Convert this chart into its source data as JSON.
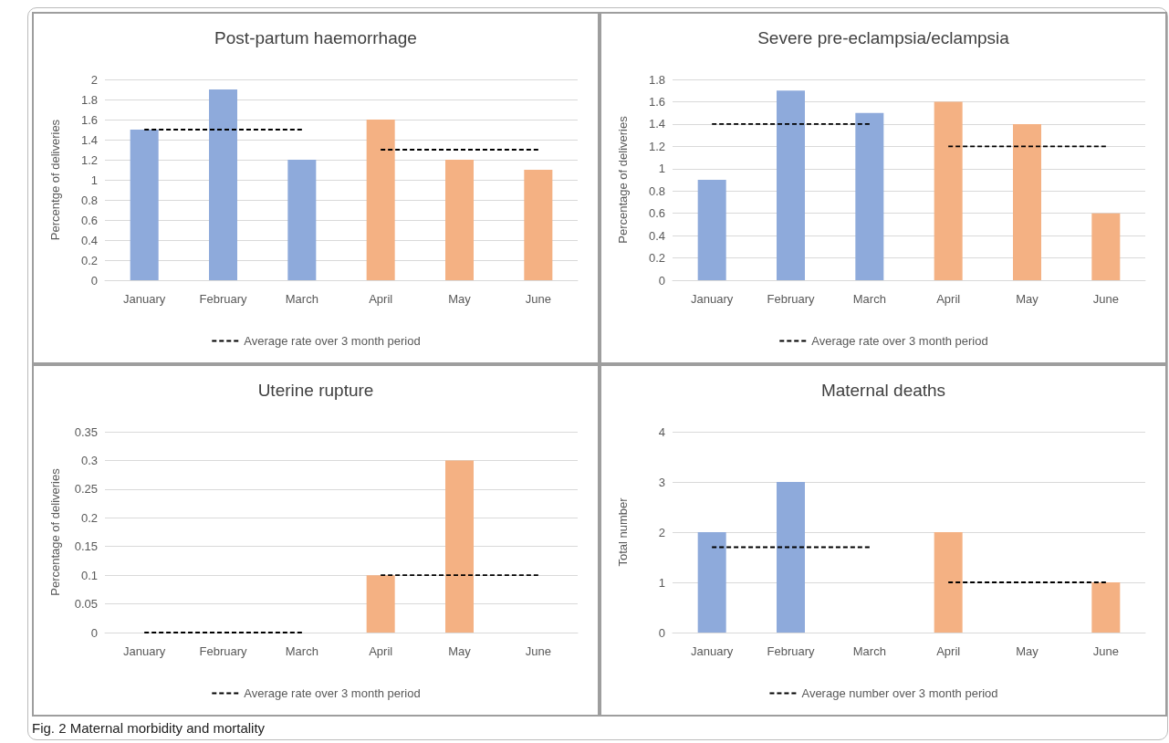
{
  "chart_data": [
    {
      "type": "bar",
      "title": "Post-partum haemorrhage",
      "ylabel": "Percentge of deliveries",
      "categories": [
        "January",
        "February",
        "March",
        "April",
        "May",
        "June"
      ],
      "ylim": [
        0,
        2
      ],
      "yticks": [
        0,
        0.2,
        0.4,
        0.6,
        0.8,
        1,
        1.2,
        1.4,
        1.6,
        1.8,
        2
      ],
      "grid": "y",
      "legend": "bottom",
      "line_style": "dashed",
      "marker": "none",
      "series": [
        {
          "colors": [
            "#8eaadb",
            "#8eaadb",
            "#8eaadb",
            "#f4b183",
            "#f4b183",
            "#f4b183"
          ],
          "values": [
            1.5,
            1.9,
            1.2,
            1.6,
            1.2,
            1.1
          ]
        },
        {
          "type": "line",
          "name": "Average rate over 3 month period",
          "color": "#000000",
          "values": [
            1.5,
            1.5,
            1.5,
            null,
            null,
            null
          ]
        },
        {
          "type": "line",
          "color": "#000000",
          "values": [
            null,
            null,
            null,
            1.3,
            1.3,
            1.3
          ]
        }
      ]
    },
    {
      "type": "bar",
      "title": "Severe pre-eclampsia/eclampsia",
      "ylabel": "Percentage of deliveries",
      "categories": [
        "January",
        "February",
        "March",
        "April",
        "May",
        "June"
      ],
      "ylim": [
        0,
        1.8
      ],
      "yticks": [
        0,
        0.2,
        0.4,
        0.6,
        0.8,
        1,
        1.2,
        1.4,
        1.6,
        1.8
      ],
      "grid": "y",
      "legend": "bottom",
      "line_style": "dashed",
      "marker": "none",
      "series": [
        {
          "colors": [
            "#8eaadb",
            "#8eaadb",
            "#8eaadb",
            "#f4b183",
            "#f4b183",
            "#f4b183"
          ],
          "values": [
            0.9,
            1.7,
            1.5,
            1.6,
            1.4,
            0.6
          ]
        },
        {
          "type": "line",
          "name": "Average rate over 3 month period",
          "color": "#000000",
          "values": [
            1.4,
            1.4,
            1.4,
            null,
            null,
            null
          ]
        },
        {
          "type": "line",
          "color": "#000000",
          "values": [
            null,
            null,
            null,
            1.2,
            1.2,
            1.2
          ]
        }
      ]
    },
    {
      "type": "bar",
      "title": "Uterine rupture",
      "ylabel": "Percentage of deliveries",
      "categories": [
        "January",
        "February",
        "March",
        "April",
        "May",
        "June"
      ],
      "ylim": [
        0,
        0.35
      ],
      "yticks": [
        0,
        0.05,
        0.1,
        0.15,
        0.2,
        0.25,
        0.3,
        0.35
      ],
      "grid": "y",
      "legend": "bottom",
      "line_style": "dashed",
      "marker": "none",
      "series": [
        {
          "colors": [
            "#8eaadb",
            "#8eaadb",
            "#8eaadb",
            "#f4b183",
            "#f4b183",
            "#f4b183"
          ],
          "values": [
            0,
            0,
            0,
            0.1,
            0.3,
            0
          ]
        },
        {
          "type": "line",
          "name": "Average rate over 3 month period",
          "color": "#000000",
          "values": [
            0,
            0,
            0,
            null,
            null,
            null
          ]
        },
        {
          "type": "line",
          "color": "#000000",
          "values": [
            null,
            null,
            null,
            0.1,
            0.1,
            0.1
          ]
        }
      ]
    },
    {
      "type": "bar",
      "title": "Maternal deaths",
      "ylabel": "Total number",
      "categories": [
        "January",
        "February",
        "March",
        "April",
        "May",
        "June"
      ],
      "ylim": [
        0,
        4
      ],
      "yticks": [
        0,
        1,
        2,
        3,
        4
      ],
      "grid": "y",
      "legend": "bottom",
      "line_style": "dashed",
      "marker": "none",
      "annotations": [
        "Fig. 2 Maternal morbidity and mortality"
      ],
      "series": [
        {
          "colors": [
            "#8eaadb",
            "#8eaadb",
            "#8eaadb",
            "#f4b183",
            "#f4b183",
            "#f4b183"
          ],
          "values": [
            2,
            3,
            0,
            2,
            0,
            1
          ]
        },
        {
          "type": "line",
          "name": "Average number over 3 month period",
          "color": "#000000",
          "values": [
            1.7,
            1.7,
            1.7,
            null,
            null,
            null
          ]
        },
        {
          "type": "line",
          "color": "#000000",
          "values": [
            null,
            null,
            null,
            1,
            1,
            1
          ]
        }
      ]
    }
  ]
}
